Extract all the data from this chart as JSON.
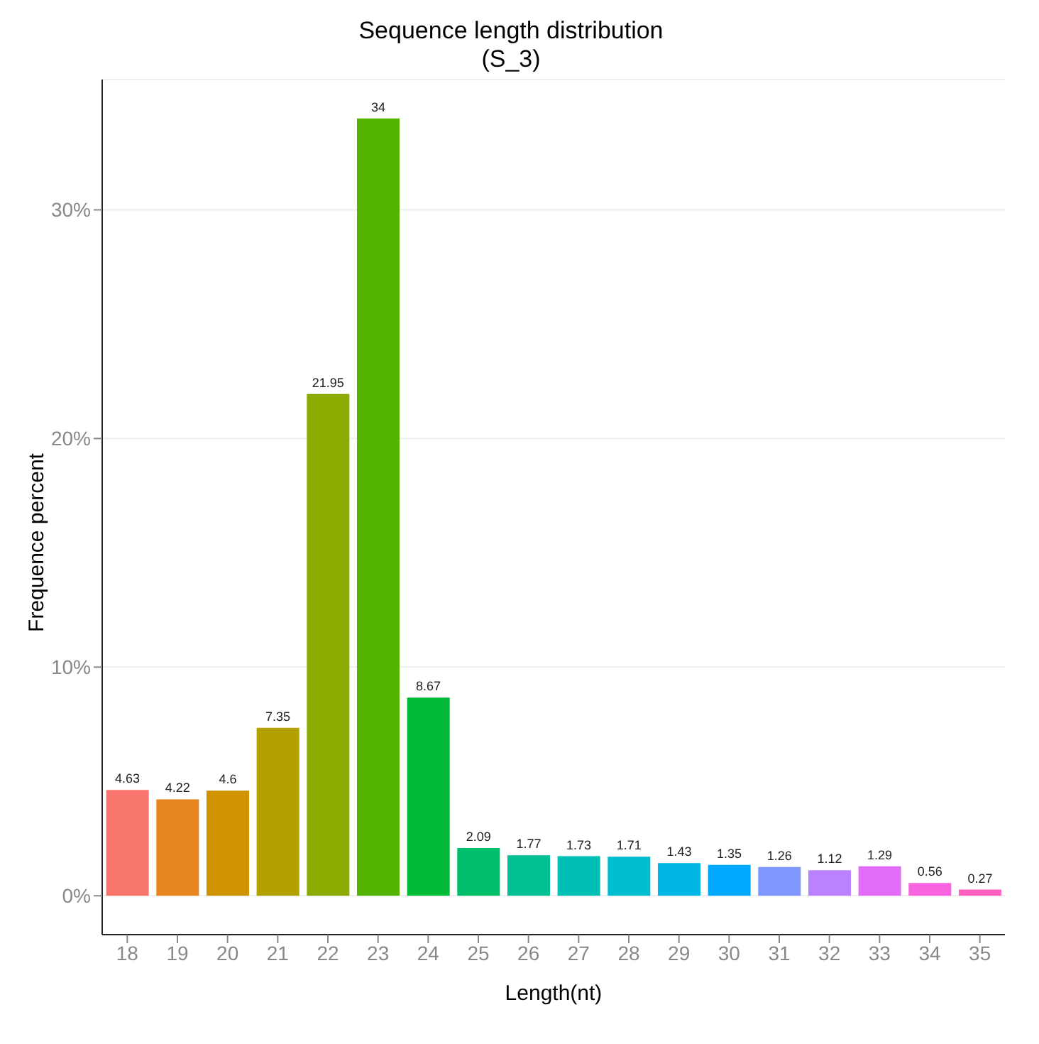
{
  "chart_data": {
    "type": "bar",
    "title": "Sequence length distribution",
    "subtitle": "(S_3)",
    "xlabel": "Length(nt)",
    "ylabel": "Frequence percent",
    "categories": [
      "18",
      "19",
      "20",
      "21",
      "22",
      "23",
      "24",
      "25",
      "26",
      "27",
      "28",
      "29",
      "30",
      "31",
      "32",
      "33",
      "34",
      "35"
    ],
    "values": [
      4.63,
      4.22,
      4.6,
      7.35,
      21.95,
      34,
      8.67,
      2.09,
      1.77,
      1.73,
      1.71,
      1.43,
      1.35,
      1.26,
      1.12,
      1.29,
      0.56,
      0.27
    ],
    "colors": [
      "#F8766D",
      "#E7851E",
      "#D09400",
      "#B2A100",
      "#8BAB00",
      "#55B400",
      "#00BA38",
      "#00BE6C",
      "#00C094",
      "#00C0B5",
      "#00BDD0",
      "#00B6E7",
      "#00A9FF",
      "#7F96FF",
      "#BC81FF",
      "#E26EF7",
      "#F863DF",
      "#FF62BF"
    ],
    "ylim": [
      -1.7,
      35.7
    ],
    "yticks": [
      {
        "value": 0,
        "label": "0%"
      },
      {
        "value": 10,
        "label": "10%"
      },
      {
        "value": 20,
        "label": "20%"
      },
      {
        "value": 30,
        "label": "30%"
      }
    ],
    "grid": "y",
    "data_labels": true
  }
}
